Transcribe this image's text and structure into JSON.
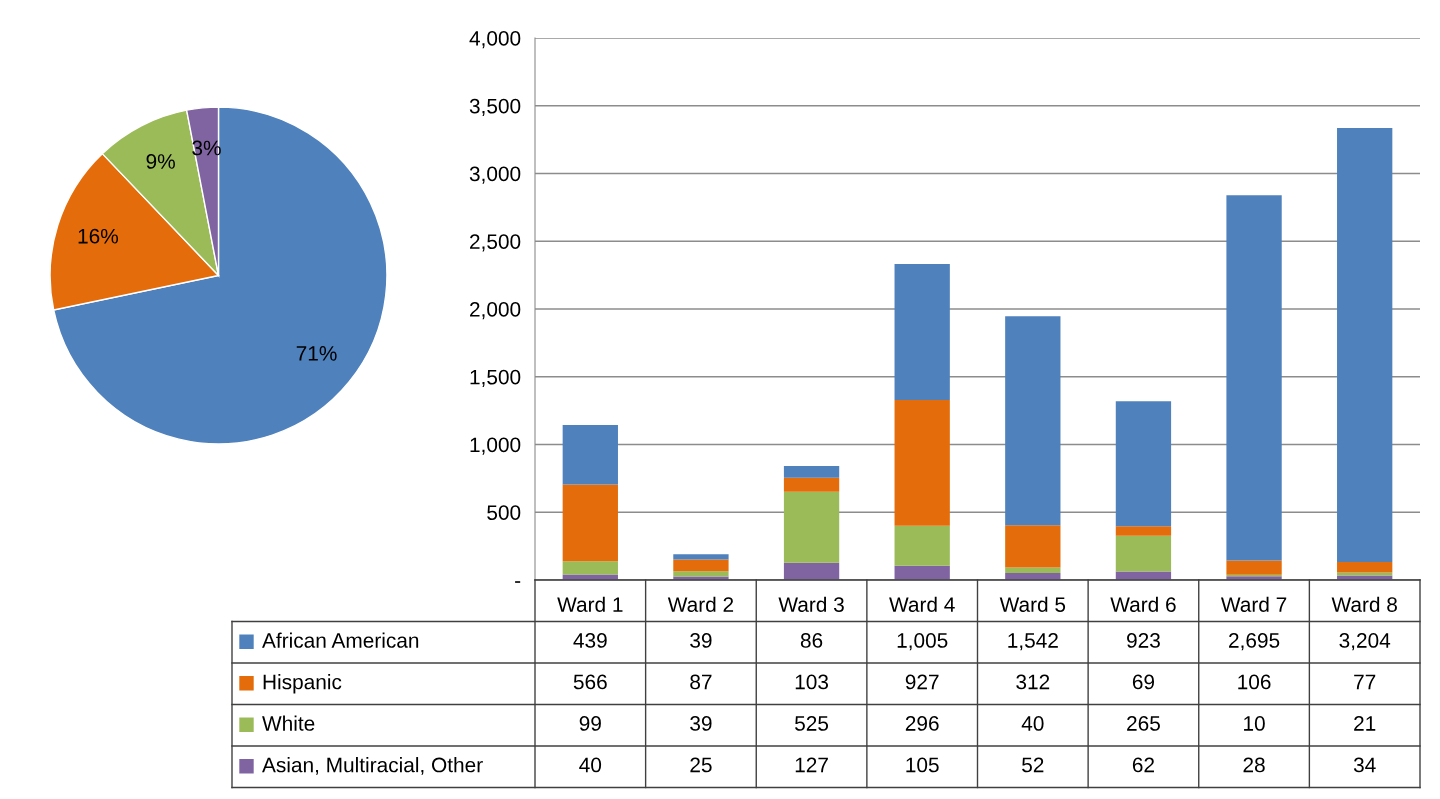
{
  "chart_data": [
    {
      "type": "pie",
      "categories": [
        null,
        null,
        null,
        null
      ],
      "values": [
        71,
        16,
        9,
        3
      ],
      "colors": [
        "#4f81bd",
        "#e46c0a",
        "#9bbb59",
        "#8064a2"
      ],
      "value_labels": [
        "71%",
        "16%",
        "9%",
        "3%"
      ]
    },
    {
      "type": "bar",
      "stacked": true,
      "categories": [
        "Ward 1",
        "Ward 2",
        "Ward 3",
        "Ward 4",
        "Ward 5",
        "Ward 6",
        "Ward 7",
        "Ward 8"
      ],
      "series": [
        {
          "name": "Asian, Multiracial, Other",
          "color": "#8064a2",
          "values": [
            40,
            25,
            127,
            105,
            52,
            62,
            28,
            34
          ],
          "value_labels": [
            "40",
            "25",
            "127",
            "105",
            "52",
            "62",
            "28",
            "34"
          ]
        },
        {
          "name": "White",
          "color": "#9bbb59",
          "values": [
            99,
            39,
            525,
            296,
            40,
            265,
            10,
            21
          ],
          "value_labels": [
            "99",
            "39",
            "525",
            "296",
            "40",
            "265",
            "10",
            "21"
          ]
        },
        {
          "name": "Hispanic",
          "color": "#e46c0a",
          "values": [
            566,
            87,
            103,
            927,
            312,
            69,
            106,
            77
          ],
          "value_labels": [
            "566",
            "87",
            "103",
            "927",
            "312",
            "69",
            "106",
            "77"
          ]
        },
        {
          "name": "African American",
          "color": "#4f81bd",
          "values": [
            439,
            39,
            86,
            1005,
            1542,
            923,
            2695,
            3204
          ],
          "value_labels": [
            "439",
            "39",
            "86",
            "1,005",
            "1,542",
            "923",
            "2,695",
            "3,204"
          ]
        }
      ],
      "ylim": [
        0,
        4000
      ],
      "yticks": [
        {
          "value": 0,
          "label": "-"
        },
        {
          "value": 500,
          "label": "500"
        },
        {
          "value": 1000,
          "label": "1,000"
        },
        {
          "value": 1500,
          "label": "1,500"
        },
        {
          "value": 2000,
          "label": "2,000"
        },
        {
          "value": 2500,
          "label": "2,500"
        },
        {
          "value": 3000,
          "label": "3,000"
        },
        {
          "value": 3500,
          "label": "3,500"
        },
        {
          "value": 4000,
          "label": "4,000"
        }
      ],
      "grid": "y",
      "legend": "bottom"
    }
  ]
}
